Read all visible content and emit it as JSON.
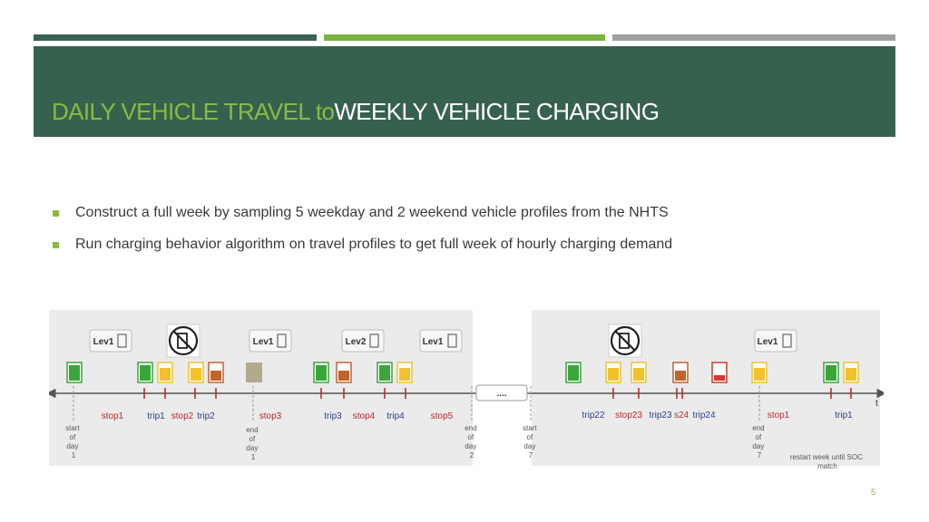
{
  "slide": {
    "title_part1": "DAILY VEHICLE TRAVEL",
    "title_part2": "to",
    "title_part3": "WEEKLY VEHICLE CHARGING",
    "bullets": [
      "Construct a full week by sampling 5 weekday and 2 weekend vehicle profiles from the NHTS",
      "Run charging behavior algorithm on travel profiles to get full week of hourly charging demand"
    ],
    "page_number": "5"
  },
  "figure": {
    "ellipsis_label": "....",
    "axis_label": "t",
    "chargers": [
      "Lev1",
      "Lev1",
      "Lev2",
      "Lev1",
      "Lev1"
    ],
    "segment_labels": [
      "stop1",
      "trip1",
      "stop2",
      "trip2",
      "stop3",
      "trip3",
      "stop4",
      "trip4",
      "stop5",
      "trip22",
      "stop23",
      "trip23",
      "s24",
      "trip24",
      "stop1",
      "trip1"
    ],
    "day_markers": [
      [
        "start",
        "of",
        "day",
        "1"
      ],
      [
        "end",
        "of",
        "day",
        "1"
      ],
      [
        "end",
        "of",
        "day",
        "2"
      ],
      [
        "start",
        "of",
        "day",
        "7"
      ],
      [
        "end",
        "of",
        "day",
        "7"
      ]
    ],
    "note_lines": [
      "restart week until SOC",
      "match"
    ],
    "colors": {
      "stop_label": "#c0272d",
      "trip_label": "#2d3e8c",
      "battery_green": "#3aa63a",
      "battery_yellow": "#f2c12e",
      "battery_orange": "#c0642a",
      "battery_red": "#d43a2e",
      "battery_gray": "#b2a98e"
    }
  }
}
